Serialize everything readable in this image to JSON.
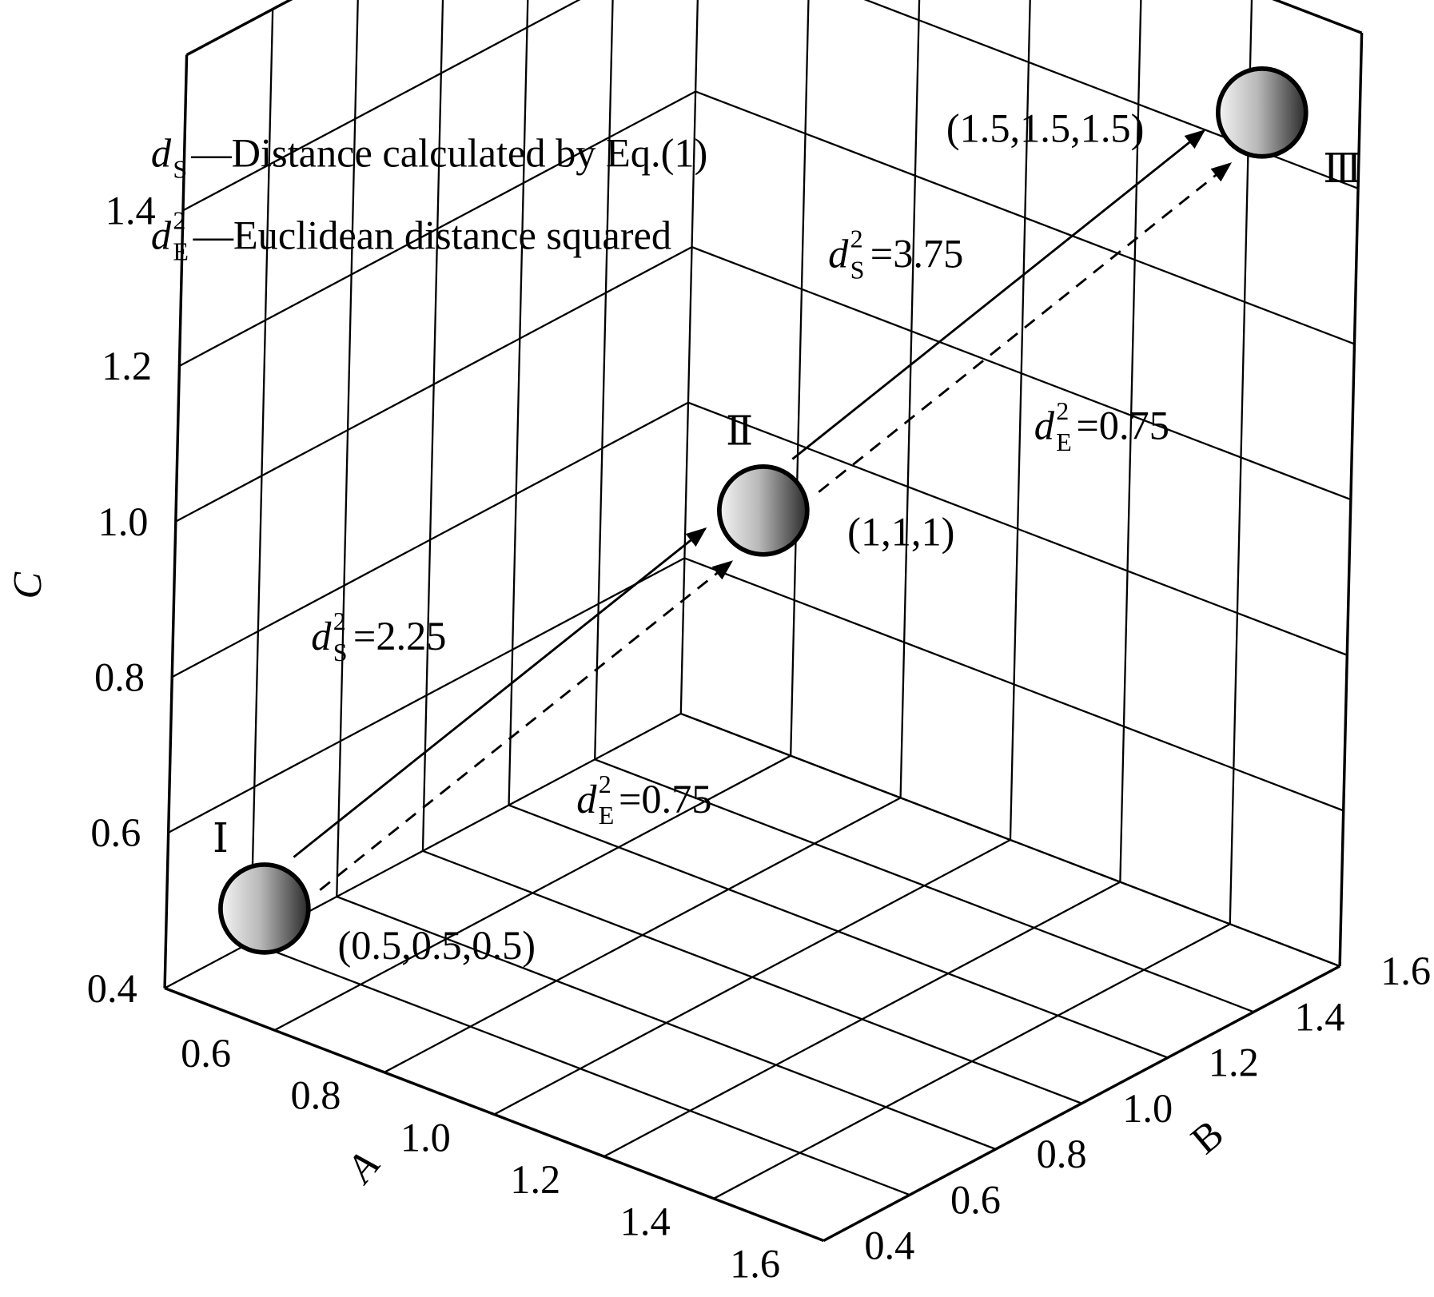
{
  "chart_data": {
    "type": "scatter3d",
    "xlabel": "A",
    "ylabel": "B",
    "zlabel": "C",
    "xlim": [
      0.4,
      1.6
    ],
    "ylim": [
      0.4,
      1.6
    ],
    "zlim": [
      0.4,
      1.6
    ],
    "xticks": [
      0.6,
      0.8,
      {
        "value": 1,
        "label": "1.0"
      },
      1.2,
      1.4,
      1.6
    ],
    "yticks": [
      0.4,
      0.6,
      0.8,
      {
        "value": 1,
        "label": "1.0"
      },
      1.2,
      1.4,
      1.6
    ],
    "zticks": [
      0.4,
      0.6,
      0.8,
      {
        "value": 1,
        "label": "1.0"
      },
      1.2,
      1.4
    ],
    "grid": true,
    "points": {
      "x": [
        0.5,
        1,
        1.5
      ],
      "y": [
        0.5,
        1,
        1.5
      ],
      "z": [
        0.5,
        1,
        1.5
      ],
      "labels": [
        "Ⅰ",
        "Ⅱ",
        "Ⅲ"
      ],
      "value_labels": [
        "(0.5,0.5,0.5)",
        "(1,1,1)",
        "(1.5,1.5,1.5)"
      ]
    },
    "annotations": [
      {
        "symbol": "d",
        "sub": "S",
        "sup": "2",
        "text": "=2.25"
      },
      {
        "symbol": "d",
        "sub": "E",
        "sup": "2",
        "text": "=0.75"
      },
      {
        "symbol": "d",
        "sub": "S",
        "sup": "2",
        "text": "=3.75"
      },
      {
        "symbol": "d",
        "sub": "E",
        "sup": "2",
        "text": "=0.75"
      }
    ],
    "legend": [
      {
        "symbol": "d",
        "sub": "S",
        "text": "—Distance calculated by Eq.(1)"
      },
      {
        "symbol": "d",
        "sub": "E",
        "sup": "2",
        "text": "—Euclidean distance squared"
      }
    ]
  }
}
